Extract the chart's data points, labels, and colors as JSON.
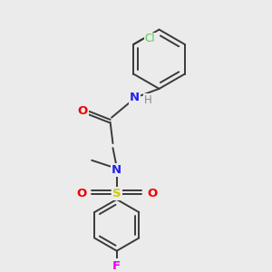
{
  "background_color": "#ebebeb",
  "bond_color": "#3a3a3a",
  "atom_colors": {
    "Cl": "#55cc55",
    "N": "#2222ee",
    "O": "#ee0000",
    "S": "#cccc00",
    "F": "#ee00ee",
    "H": "#888888",
    "C": "#3a3a3a"
  },
  "figsize": [
    3.0,
    3.0
  ],
  "dpi": 100
}
